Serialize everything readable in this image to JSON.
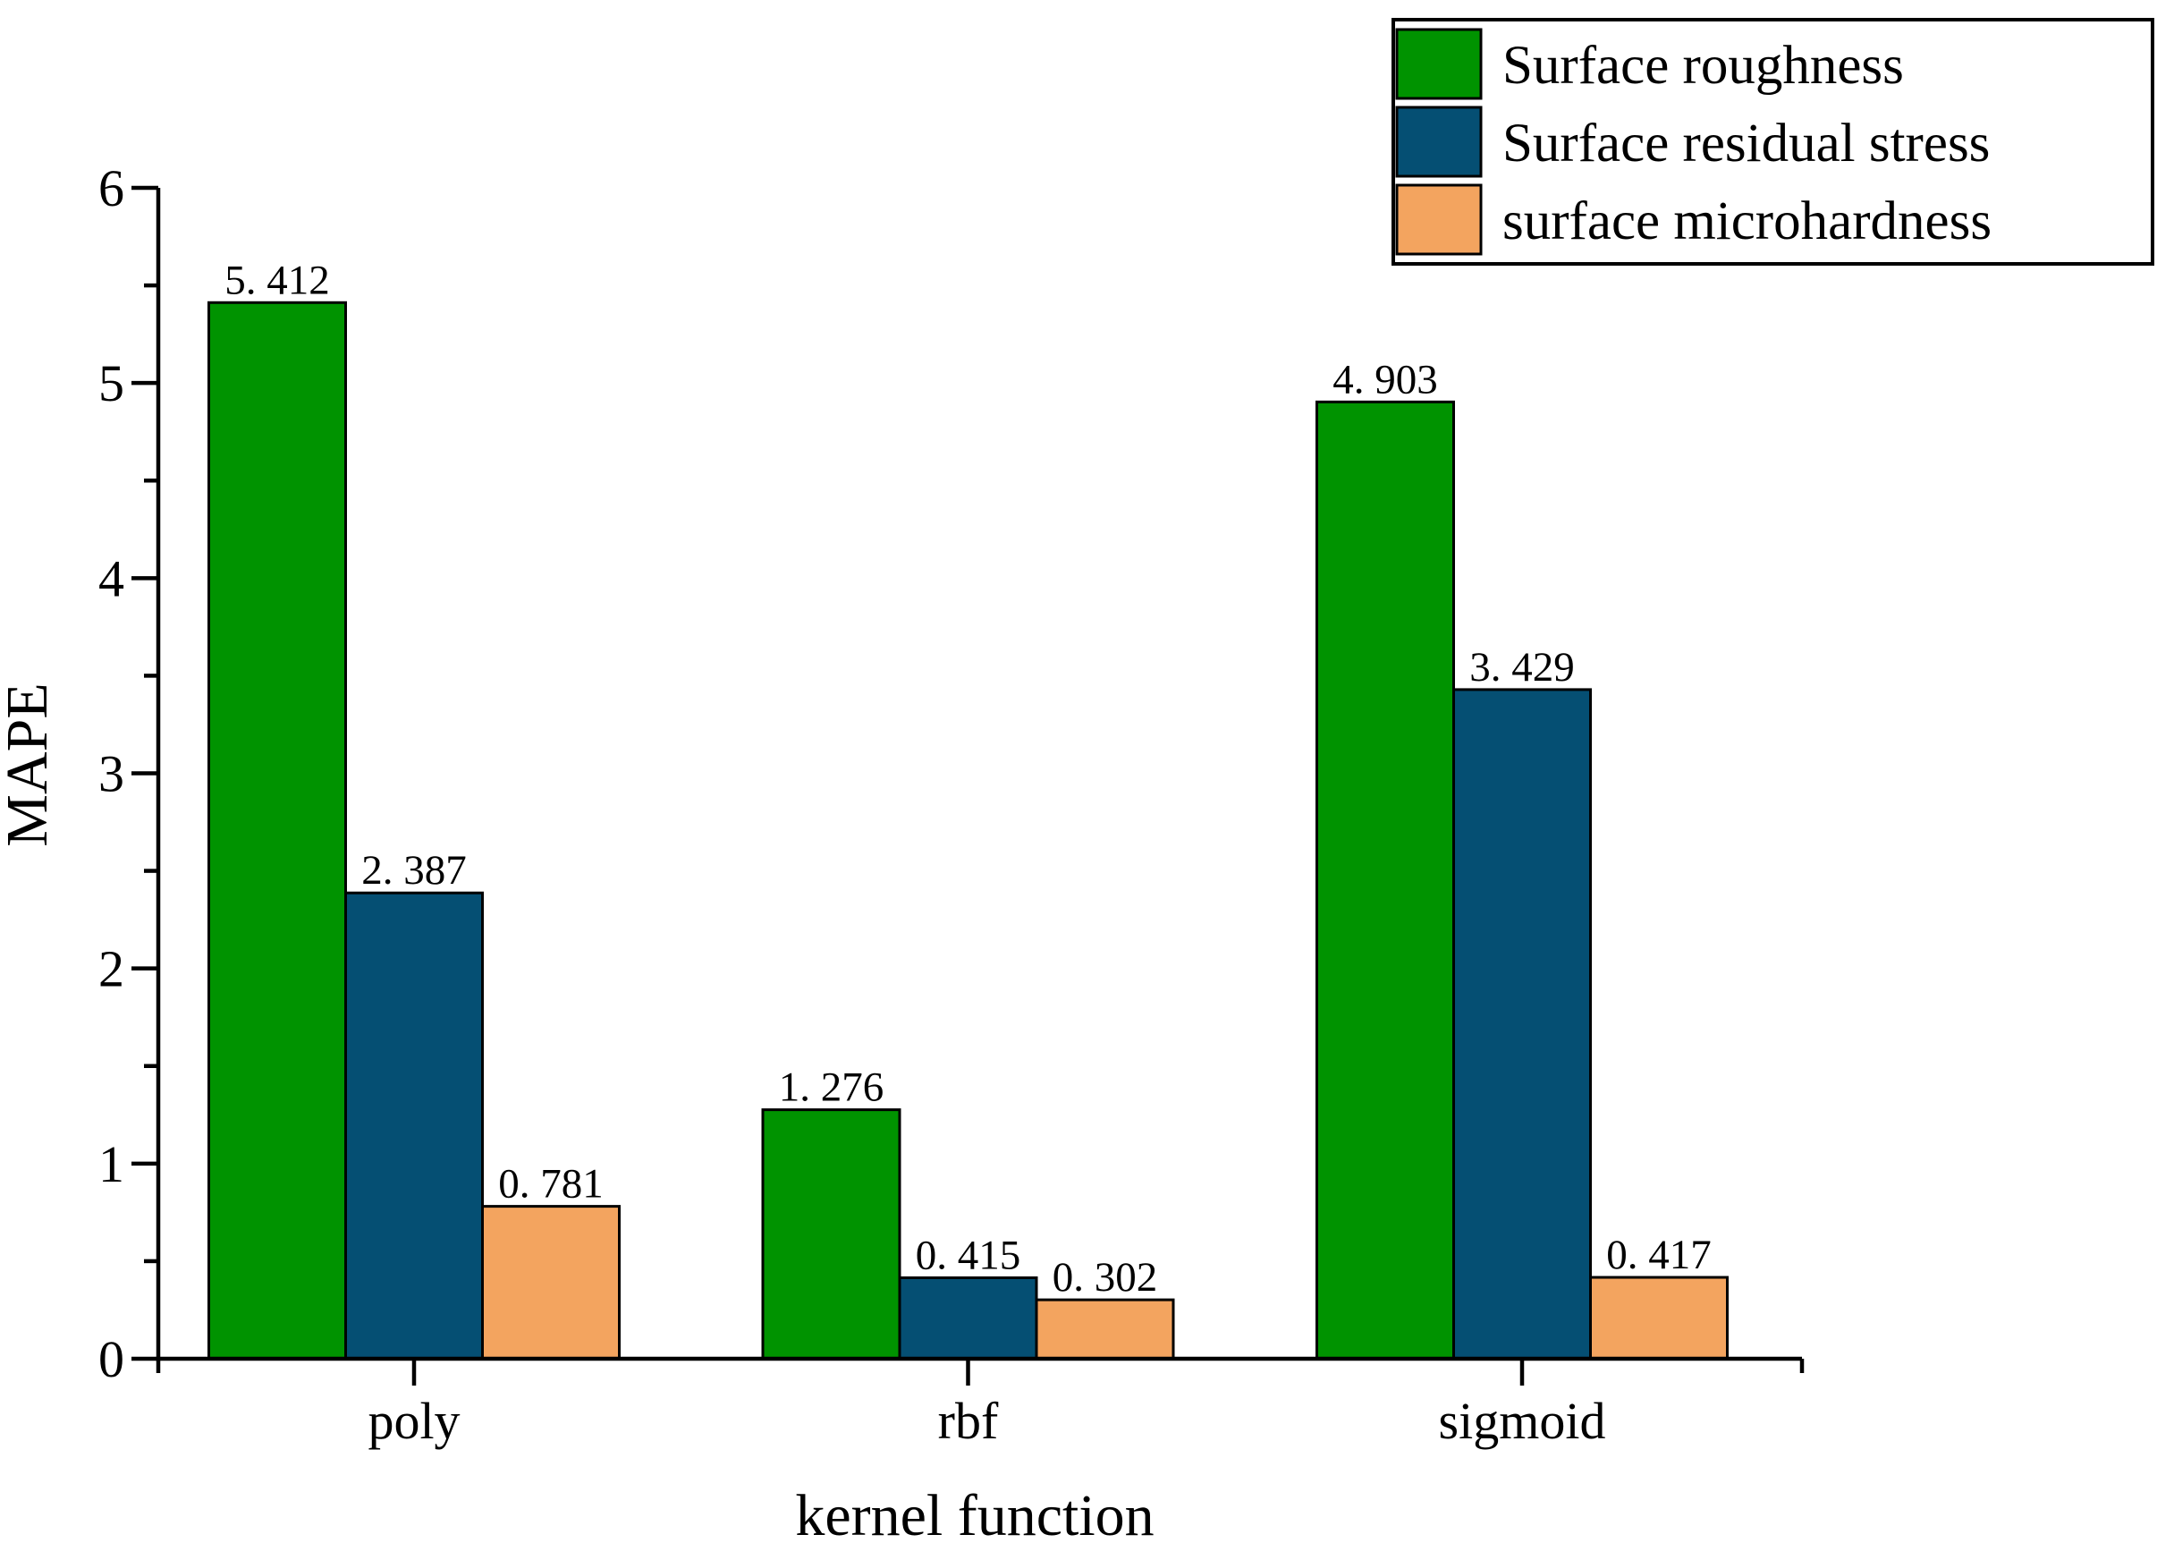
{
  "chart_data": {
    "type": "bar",
    "title": "",
    "xlabel": "kernel function",
    "ylabel": "MAPE",
    "categories": [
      "poly",
      "rbf",
      "sigmoid"
    ],
    "series": [
      {
        "name": "Surface roughness",
        "color": "#009300",
        "values": [
          5.412,
          1.276,
          4.903
        ],
        "value_labels": [
          "5. 412",
          "1. 276",
          "4. 903"
        ]
      },
      {
        "name": "Surface residual stress",
        "color": "#054F73",
        "values": [
          2.387,
          0.415,
          3.429
        ],
        "value_labels": [
          "2. 387",
          "0. 415",
          "3. 429"
        ]
      },
      {
        "name": "surface microhardness",
        "color": "#F3A45F",
        "values": [
          0.781,
          0.302,
          0.417
        ],
        "value_labels": [
          "0. 781",
          "0. 302",
          "0. 417"
        ]
      }
    ],
    "ylim": [
      0,
      6
    ],
    "y_major_step": 1,
    "y_minor_step": 0.5,
    "y_tick_labels": [
      "0",
      "1",
      "2",
      "3",
      "4",
      "5",
      "6"
    ],
    "grid": false,
    "legend_position": "top-right",
    "bar_edge_color": "#000000",
    "axis_color": "#000000",
    "background_color": "#FFFFFF"
  }
}
